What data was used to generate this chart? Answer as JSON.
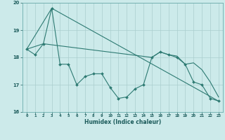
{
  "xlabel": "Humidex (Indice chaleur)",
  "ylabel": "",
  "bg_color": "#cceaea",
  "line_color": "#2d7a72",
  "grid_color": "#aacece",
  "xlim": [
    -0.5,
    23.5
  ],
  "ylim": [
    16,
    20
  ],
  "yticks": [
    16,
    17,
    18,
    19,
    20
  ],
  "xticks": [
    0,
    1,
    2,
    3,
    4,
    5,
    6,
    7,
    8,
    9,
    10,
    11,
    12,
    13,
    14,
    15,
    16,
    17,
    18,
    19,
    20,
    21,
    22,
    23
  ],
  "line1_x": [
    0,
    1,
    2,
    3,
    4,
    5,
    6,
    7,
    8,
    9,
    10,
    11,
    12,
    13,
    14,
    15,
    16,
    17,
    18,
    19,
    20,
    21,
    22,
    23
  ],
  "line1_y": [
    18.3,
    18.1,
    18.5,
    19.8,
    17.75,
    17.75,
    17.0,
    17.3,
    17.4,
    17.4,
    16.9,
    16.5,
    16.55,
    16.85,
    17.0,
    18.0,
    18.2,
    18.1,
    18.0,
    17.75,
    17.1,
    17.0,
    16.5,
    16.4
  ],
  "line2_x": [
    0,
    3,
    23
  ],
  "line2_y": [
    18.3,
    19.8,
    16.4
  ],
  "line3_x": [
    0,
    2,
    15,
    16,
    17,
    18,
    19,
    20,
    21,
    22,
    23
  ],
  "line3_y": [
    18.3,
    18.5,
    18.0,
    18.2,
    18.1,
    18.05,
    17.75,
    17.8,
    17.55,
    17.1,
    16.55
  ]
}
